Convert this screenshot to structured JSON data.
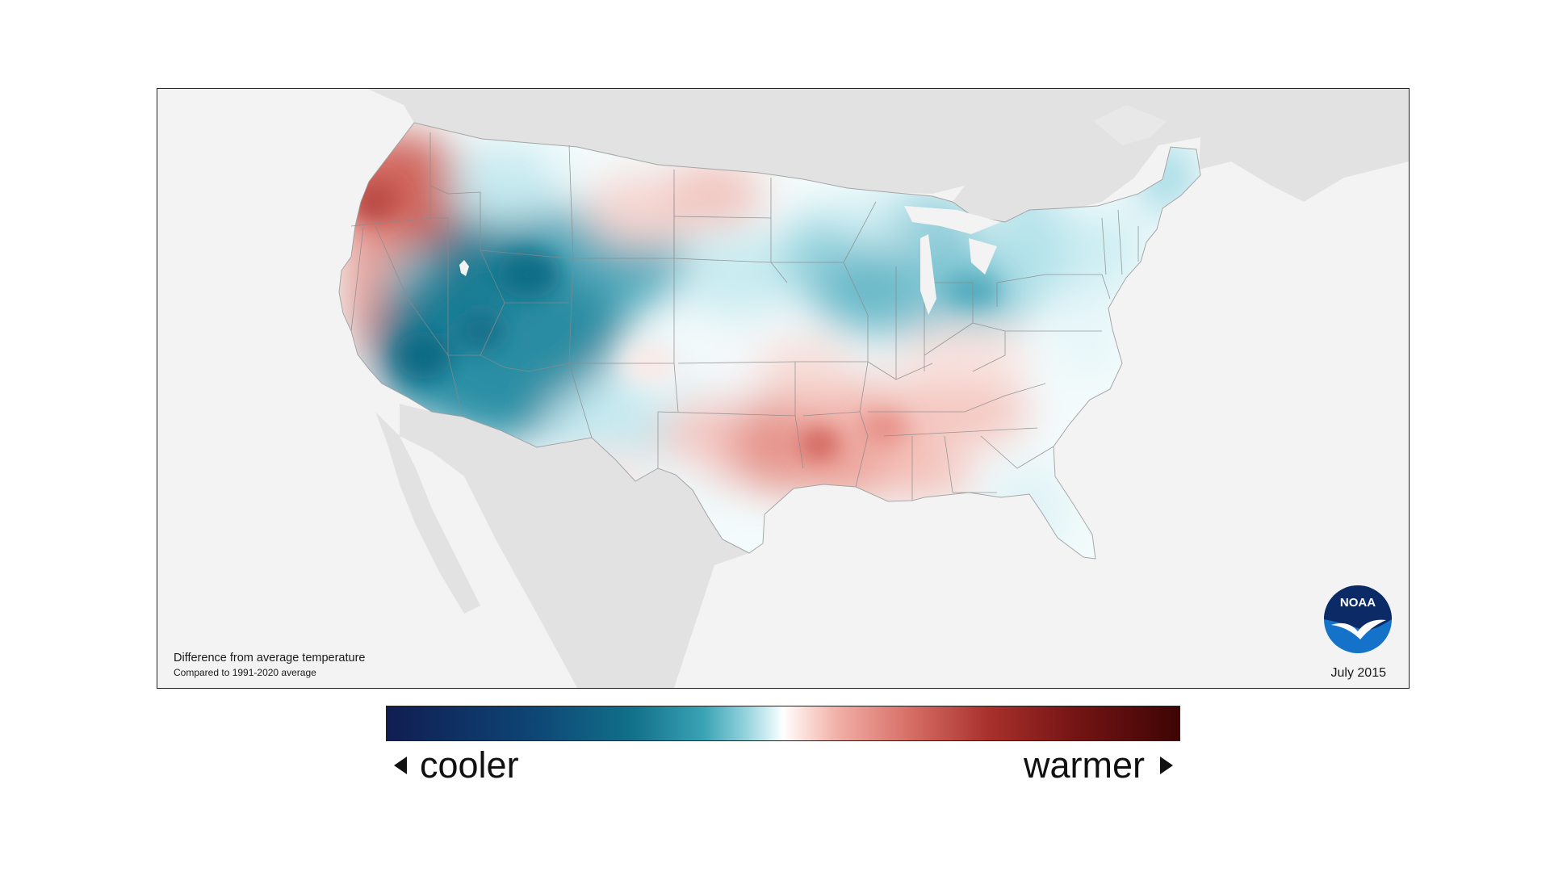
{
  "map": {
    "caption_title": "Difference from average temperature",
    "caption_subtitle": "Compared to 1991-2020 average",
    "date": "July 2015",
    "logo_text": "NOAA",
    "colors": {
      "ocean": "#f3f3f3",
      "neighbor_land": "#e2e2e2",
      "borders": "#8a8a8a",
      "cool_deep": "#0e6b84",
      "cool_mid": "#4fb0c2",
      "cool_light": "#c9ecf1",
      "warm_light": "#fbd7d1",
      "warm_mid": "#e58b82",
      "warm_deep": "#c2504a",
      "noaa_blue": "#1473c8",
      "noaa_navy": "#0b2a66"
    }
  },
  "legend": {
    "cooler_label": "cooler",
    "warmer_label": "warmer",
    "gradient_stops": [
      "#101d52",
      "#0e4474",
      "#11708a",
      "#3aa3b5",
      "#8fd0db",
      "#ffffff",
      "#f1aea5",
      "#d66e66",
      "#a8302b",
      "#741414",
      "#3e0404"
    ]
  }
}
